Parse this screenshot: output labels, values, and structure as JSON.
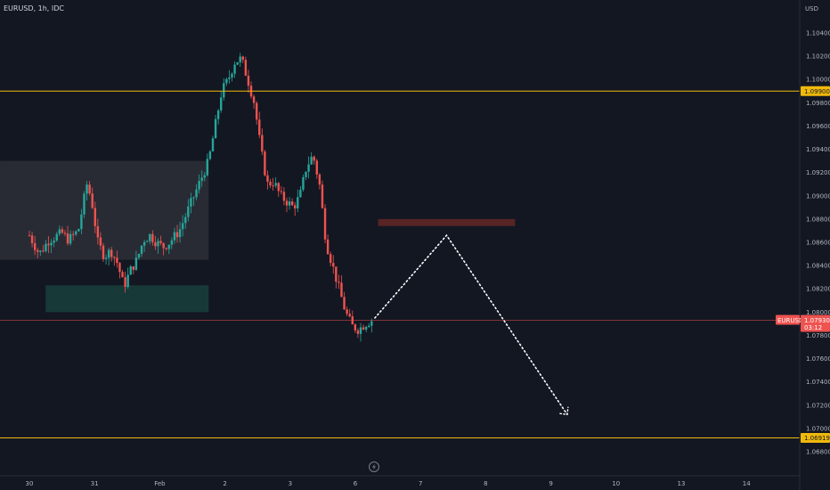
{
  "header": {
    "title": "EURUSD, 1h, IDC"
  },
  "colors": {
    "bg": "#131722",
    "up": "#26a69a",
    "down": "#ef5350",
    "level": "#f0b90b",
    "grid": "#1e222d",
    "text": "#b2b5be"
  },
  "chart_data": {
    "type": "candlestick",
    "symbol": "EURUSD",
    "interval": "1h",
    "source": "IDC",
    "currency_label": "USD",
    "ylim": [
      1.0665,
      1.1068
    ],
    "y_ticks": [
      "1.10400",
      "1.10200",
      "1.10000",
      "1.09800",
      "1.09600",
      "1.09400",
      "1.09200",
      "1.09000",
      "1.08800",
      "1.08600",
      "1.08400",
      "1.08200",
      "1.08000",
      "1.07800",
      "1.07600",
      "1.07400",
      "1.07200",
      "1.07000",
      "1.06800"
    ],
    "x_ticks": [
      {
        "label": "30",
        "day": 0
      },
      {
        "label": "31",
        "day": 1
      },
      {
        "label": "Feb",
        "day": 2
      },
      {
        "label": "2",
        "day": 3
      },
      {
        "label": "3",
        "day": 4
      },
      {
        "label": "6",
        "day": 5
      },
      {
        "label": "7",
        "day": 6
      },
      {
        "label": "8",
        "day": 7
      },
      {
        "label": "9",
        "day": 8
      },
      {
        "label": "10",
        "day": 9
      },
      {
        "label": "13",
        "day": 10
      },
      {
        "label": "14",
        "day": 11
      }
    ],
    "close_path": [
      [
        0.0,
        1.0866
      ],
      [
        0.15,
        1.085
      ],
      [
        0.3,
        1.0862
      ],
      [
        0.5,
        1.0868
      ],
      [
        0.6,
        1.0862
      ],
      [
        0.75,
        1.087
      ],
      [
        0.88,
        1.091
      ],
      [
        0.95,
        1.0898
      ],
      [
        1.05,
        1.086
      ],
      [
        1.15,
        1.0848
      ],
      [
        1.25,
        1.0853
      ],
      [
        1.35,
        1.0842
      ],
      [
        1.45,
        1.0822
      ],
      [
        1.55,
        1.0836
      ],
      [
        1.65,
        1.0845
      ],
      [
        1.75,
        1.0862
      ],
      [
        1.85,
        1.0866
      ],
      [
        1.95,
        1.086
      ],
      [
        2.05,
        1.0856
      ],
      [
        2.15,
        1.086
      ],
      [
        2.3,
        1.087
      ],
      [
        2.45,
        1.089
      ],
      [
        2.6,
        1.091
      ],
      [
        2.75,
        1.093
      ],
      [
        2.85,
        1.096
      ],
      [
        2.95,
        1.099
      ],
      [
        3.05,
        1.1
      ],
      [
        3.15,
        1.1015
      ],
      [
        3.25,
        1.1018
      ],
      [
        3.35,
        1.1
      ],
      [
        3.45,
        1.098
      ],
      [
        3.55,
        1.094
      ],
      [
        3.65,
        1.091
      ],
      [
        3.75,
        1.0912
      ],
      [
        3.85,
        1.09
      ],
      [
        3.95,
        1.0895
      ],
      [
        4.05,
        1.089
      ],
      [
        4.15,
        1.09
      ],
      [
        4.25,
        1.0925
      ],
      [
        4.35,
        1.0935
      ],
      [
        4.45,
        1.091
      ],
      [
        4.55,
        1.086
      ],
      [
        4.65,
        1.084
      ],
      [
        4.75,
        1.082
      ],
      [
        4.85,
        1.08
      ],
      [
        4.95,
        1.0788
      ],
      [
        5.05,
        1.0785
      ],
      [
        5.15,
        1.079
      ],
      [
        5.25,
        1.0793
      ]
    ],
    "current_price": {
      "symbol": "EURUSD",
      "value": "1.07930",
      "countdown": "03:12"
    },
    "levels": [
      {
        "name": "upper-level",
        "value": 1.099,
        "label": "1.09900"
      },
      {
        "name": "lower-level",
        "value": 1.06919,
        "label": "1.06919"
      }
    ],
    "zones": [
      {
        "name": "range-box",
        "x0": -0.45,
        "x1": 2.75,
        "y0": 1.0845,
        "y1": 1.093,
        "color": "#2a2c36"
      },
      {
        "name": "demand-zone",
        "x0": 0.25,
        "x1": 2.75,
        "y0": 1.08,
        "y1": 1.0823,
        "color": "#173c3b"
      },
      {
        "name": "supply-zone",
        "x0": 5.35,
        "x1": 7.45,
        "y0": 1.0874,
        "y1": 1.088,
        "color": "#5c2525"
      }
    ],
    "projection": [
      [
        5.3,
        1.0795
      ],
      [
        6.4,
        1.0866
      ],
      [
        8.25,
        1.0712
      ]
    ]
  }
}
